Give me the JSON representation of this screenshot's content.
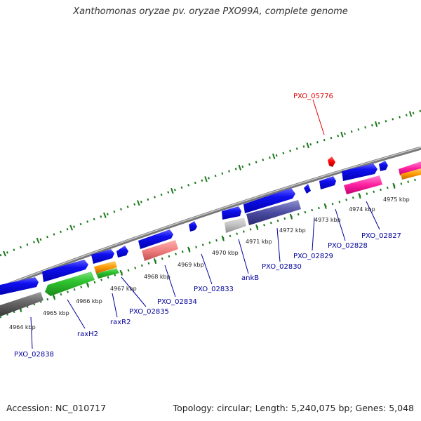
{
  "title": "Xanthomonas oryzae pv. oryzae PXO99A, complete genome",
  "footer": {
    "accession": "Accession: NC_010717",
    "summary": "Topology: circular; Length: 5,240,075 bp; Genes: 5,048"
  },
  "colors": {
    "backbone": "#999999",
    "tick": "#1a7a1a",
    "label_default": "#00009c",
    "label_highlight": "#e00000"
  },
  "scale_labels": [
    "4964 kbp",
    "4965 kbp",
    "4966 kbp",
    "4967 kbp",
    "4968 kbp",
    "4969 kbp",
    "4970 kbp",
    "4971 kbp",
    "4972 kbp",
    "4973 kbp",
    "4974 kbp",
    "4975 kbp"
  ],
  "gene_labels": [
    {
      "text": "PXO_02838",
      "color": "#00009c"
    },
    {
      "text": "raxH2",
      "color": "#00009c"
    },
    {
      "text": "raxR2",
      "color": "#00009c"
    },
    {
      "text": "PXO_02835",
      "color": "#00009c"
    },
    {
      "text": "PXO_02834",
      "color": "#00009c"
    },
    {
      "text": "PXO_02833",
      "color": "#00009c"
    },
    {
      "text": "ankB",
      "color": "#00009c"
    },
    {
      "text": "PXO_02830",
      "color": "#00009c"
    },
    {
      "text": "PXO_02829",
      "color": "#00009c"
    },
    {
      "text": "PXO_02828",
      "color": "#00009c"
    },
    {
      "text": "PXO_02827",
      "color": "#00009c"
    },
    {
      "text": "PXO_05776",
      "color": "#e00000"
    }
  ]
}
